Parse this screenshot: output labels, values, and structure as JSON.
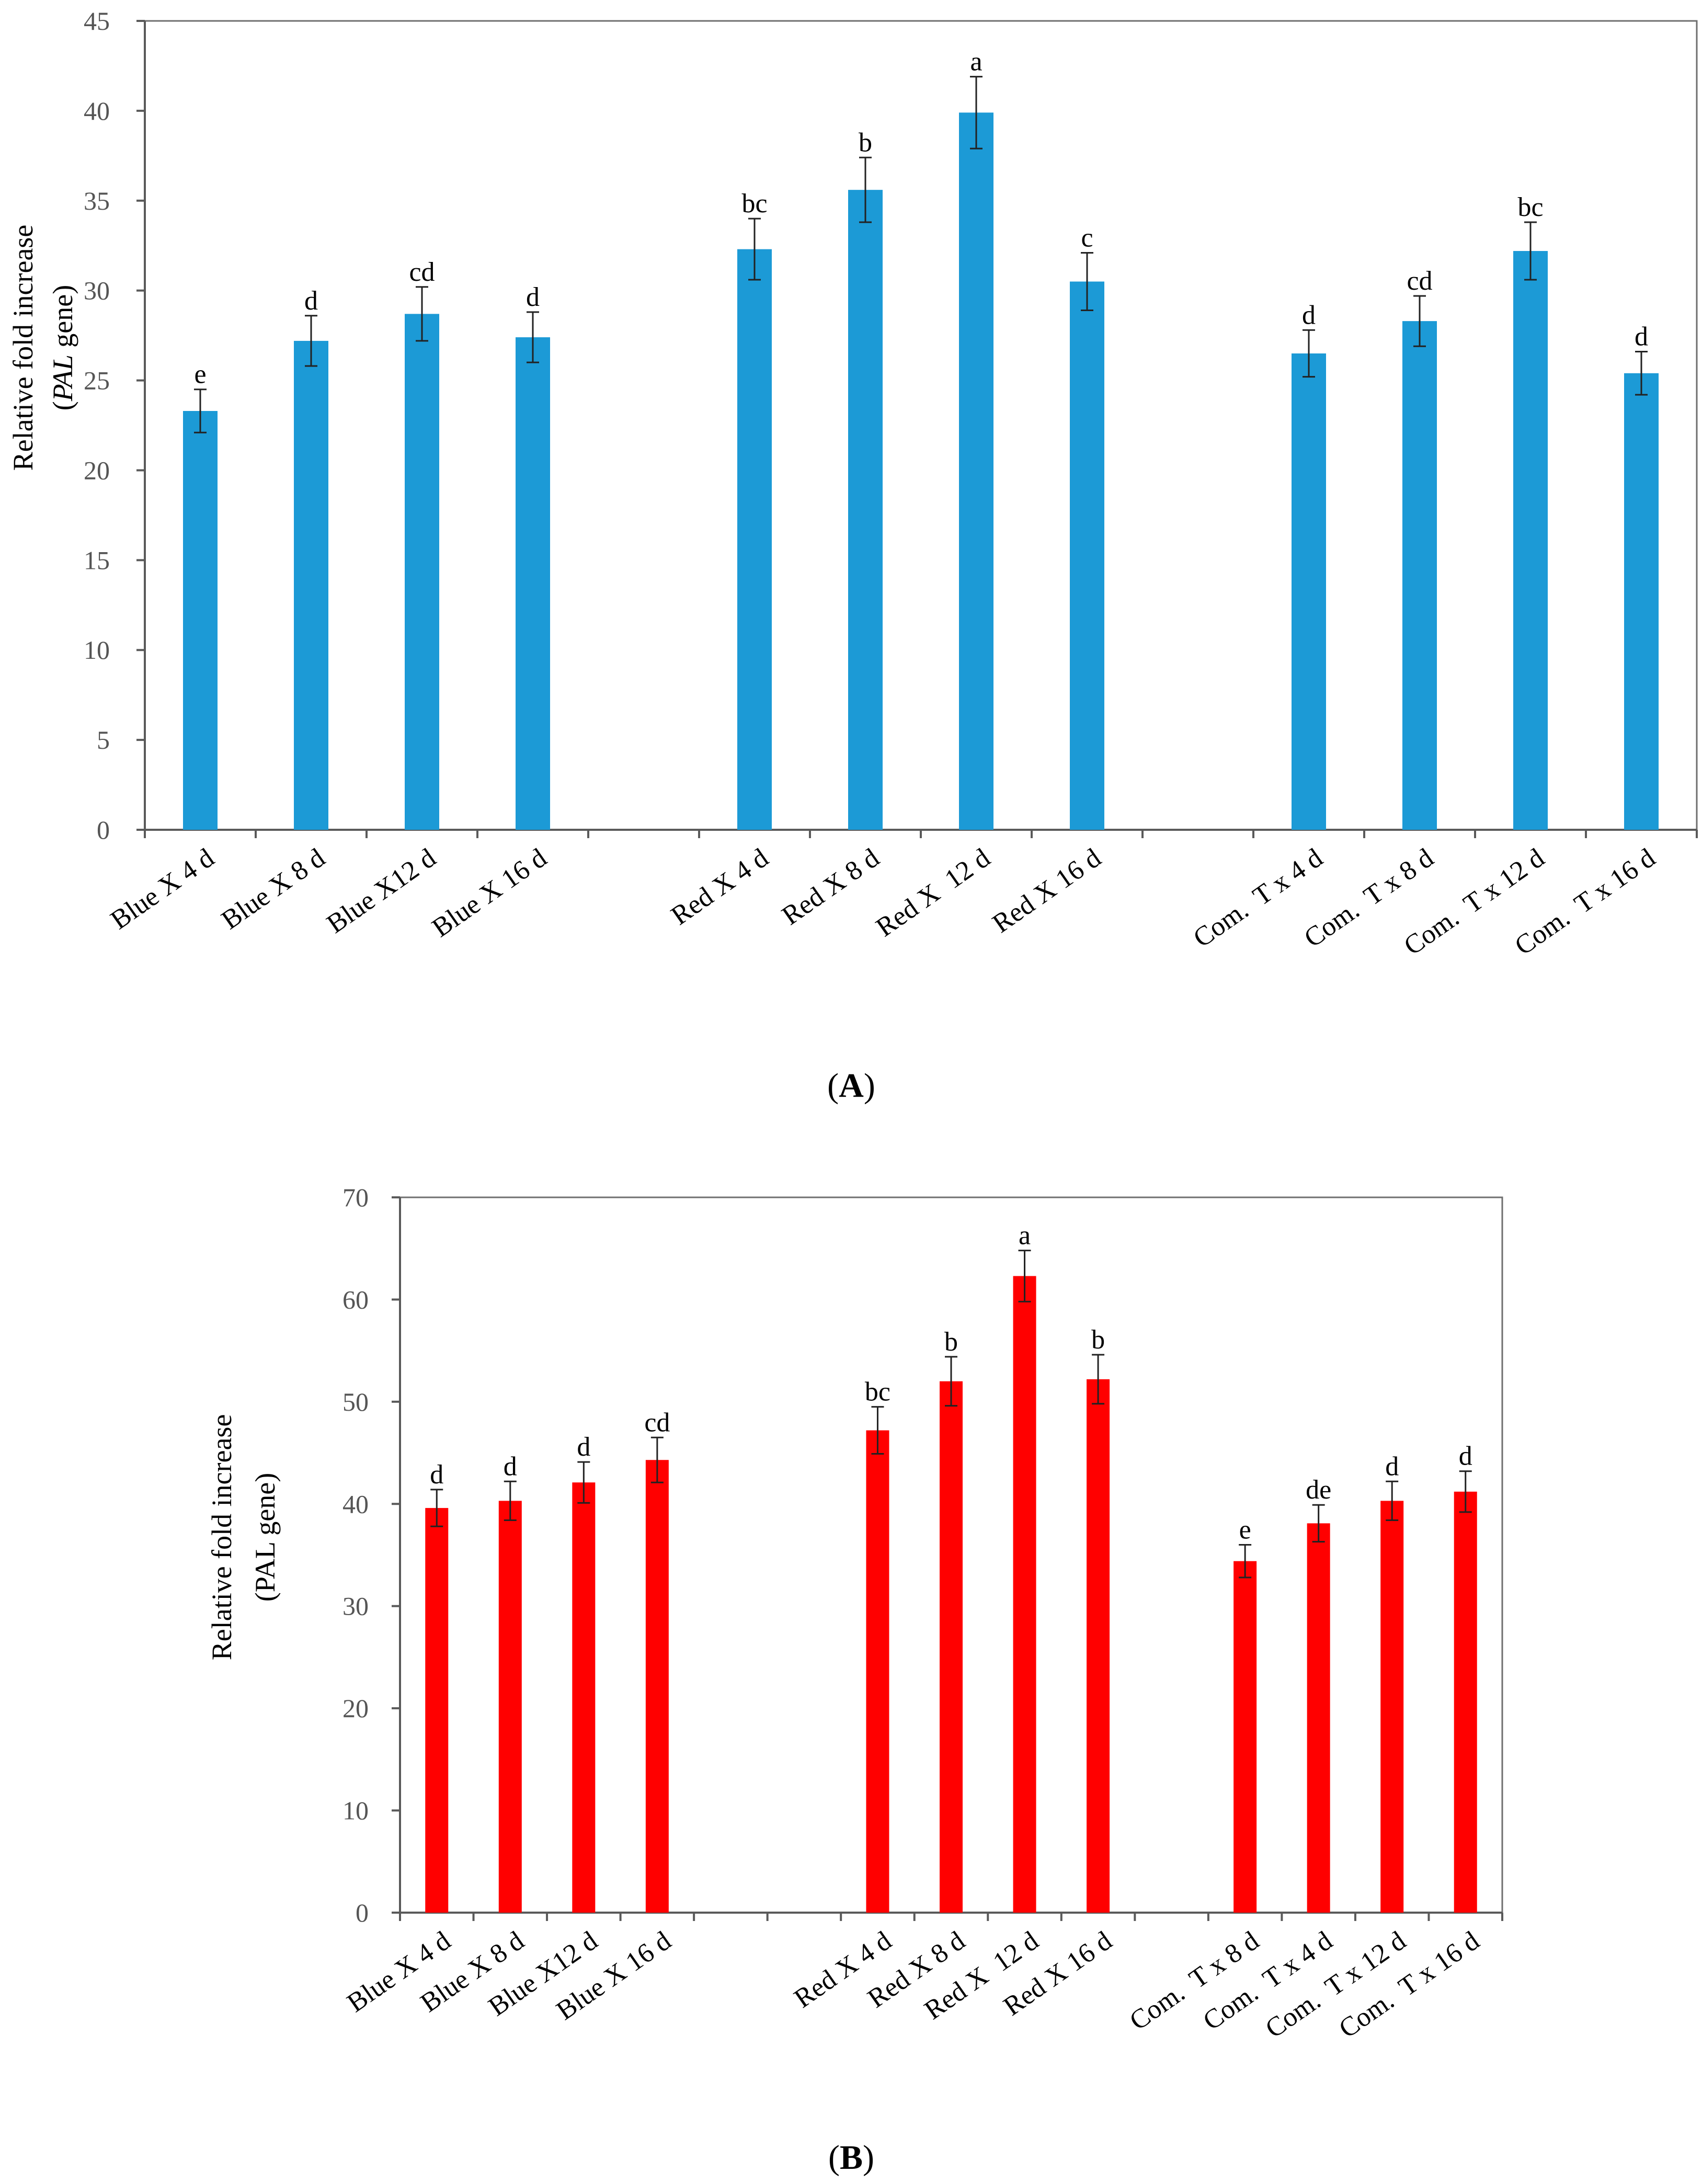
{
  "chart_data": [
    {
      "type": "bar",
      "panel": "A",
      "panel_label_open": "(",
      "panel_label_letter": "A",
      "panel_label_close": ")",
      "ylabel_line1": "Relative fold increase",
      "ylabel_gene_italic": "PAL",
      "ylabel_gene_rest": " gene)",
      "ylabel_paren": "(",
      "ylim": [
        0,
        45
      ],
      "yticks": [
        0,
        5,
        10,
        15,
        20,
        25,
        30,
        35,
        40,
        45
      ],
      "color": "#1C9AD6",
      "framed": true,
      "categories": [
        "Blue X 4 d",
        "Blue X 8 d",
        "Blue X12 d",
        "Blue X 16 d",
        "",
        "Red X 4 d",
        "Red X 8 d",
        "Red X  12 d",
        "Red X 16 d",
        "",
        "Com.  T x 4 d",
        "Com.  T x 8 d",
        "Com.  T x 12 d",
        "Com.  T x 16 d"
      ],
      "values": [
        23.3,
        27.2,
        28.7,
        27.4,
        null,
        32.3,
        35.6,
        39.9,
        30.5,
        null,
        26.5,
        28.3,
        32.2,
        25.4
      ],
      "errors": [
        1.2,
        1.4,
        1.5,
        1.4,
        null,
        1.7,
        1.8,
        2.0,
        1.6,
        null,
        1.3,
        1.4,
        1.6,
        1.2
      ],
      "significance": [
        "e",
        "d",
        "cd",
        "d",
        "",
        "bc",
        "b",
        "a",
        "c",
        "",
        "d",
        "cd",
        "bc",
        "d"
      ]
    },
    {
      "type": "bar",
      "panel": "B",
      "panel_label_open": "(",
      "panel_label_letter": "B",
      "panel_label_close": ")",
      "ylabel_line1": "Relative fold increase",
      "ylabel_line2": "(PAL gene)",
      "ylim": [
        0,
        70
      ],
      "yticks": [
        0,
        10,
        20,
        30,
        40,
        50,
        60,
        70
      ],
      "color": "#FF0000",
      "framed": true,
      "categories": [
        "Blue X 4 d",
        "Blue X 8 d",
        "Blue X12 d",
        "Blue X 16 d",
        "",
        "",
        "Red X 4 d",
        "Red X 8 d",
        "Red X  12 d",
        "Red X 16 d",
        "",
        "Com.  T x 8 d",
        "Com.  T x 4 d",
        "Com.  T x 12 d",
        "Com.  T x 16 d"
      ],
      "values": [
        39.6,
        40.3,
        42.1,
        44.3,
        null,
        null,
        47.2,
        52.0,
        62.3,
        52.2,
        null,
        34.4,
        38.1,
        40.3,
        41.2
      ],
      "errors": [
        1.8,
        1.9,
        2.0,
        2.2,
        null,
        null,
        2.3,
        2.4,
        2.5,
        2.4,
        null,
        1.6,
        1.8,
        1.9,
        2.0
      ],
      "significance": [
        "d",
        "d",
        "d",
        "cd",
        "",
        "",
        "bc",
        "b",
        "a",
        "b",
        "",
        "e",
        "de",
        "d",
        "d"
      ]
    }
  ]
}
